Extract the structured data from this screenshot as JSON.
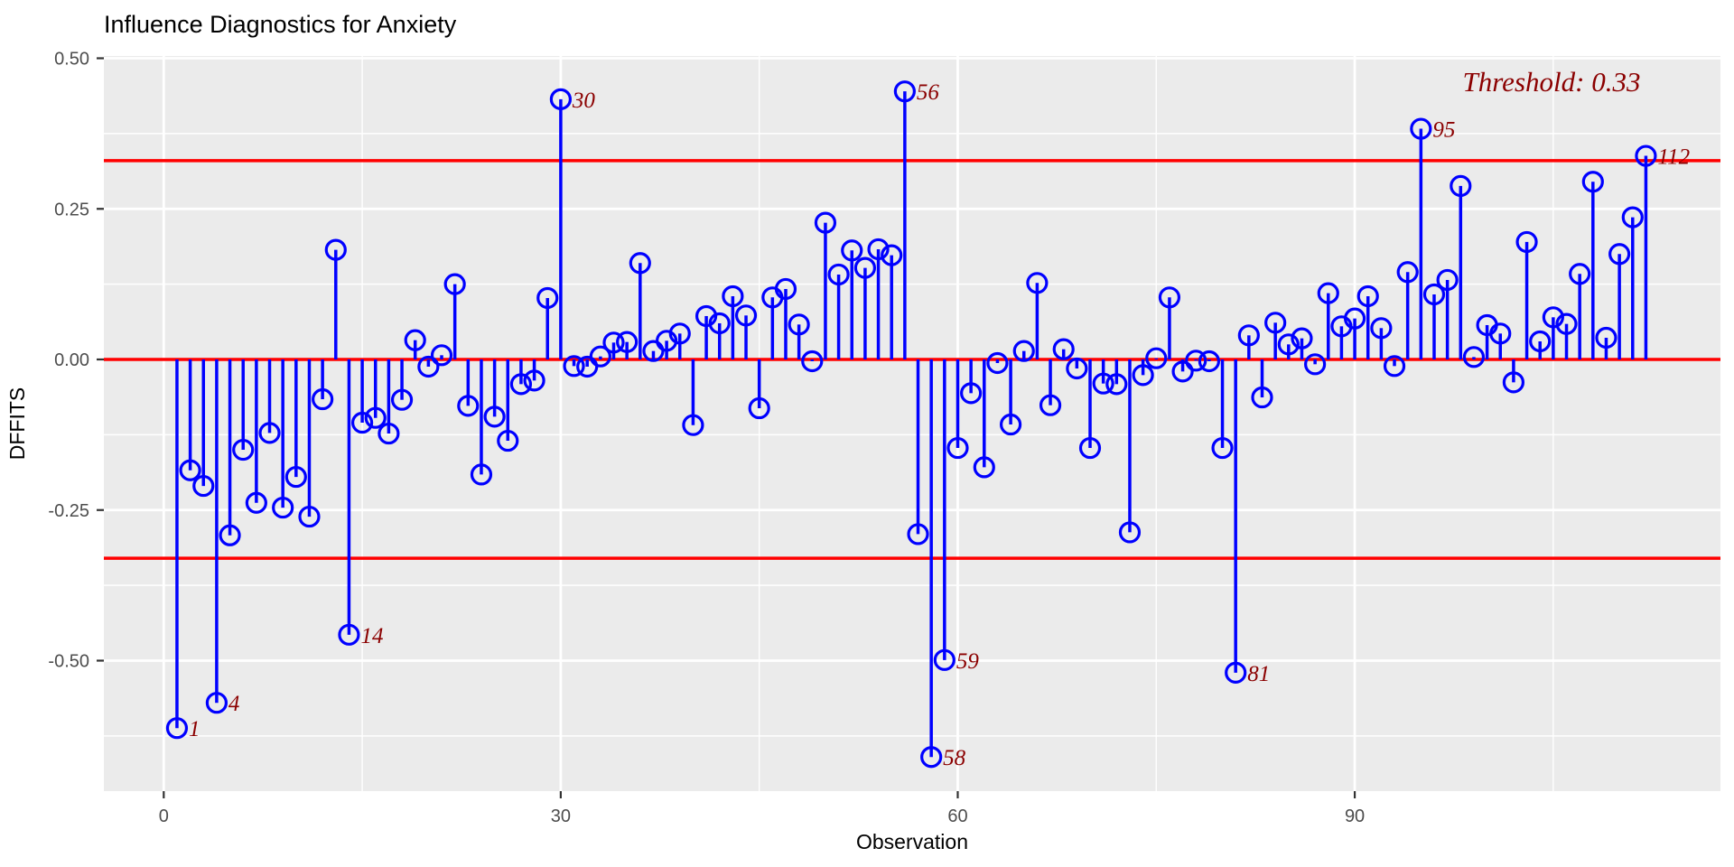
{
  "title": "Influence Diagnostics for Anxiety",
  "annotation": {
    "text": "Threshold: 0.33"
  },
  "axes": {
    "x_label": "Observation",
    "y_label": "DFFITS"
  },
  "chart_data": {
    "type": "stem",
    "title": "Influence Diagnostics for Anxiety",
    "xlabel": "Observation",
    "ylabel": "DFFITS",
    "threshold": 0.33,
    "zero_line": 0,
    "xlim": [
      -4.5,
      117.7
    ],
    "ylim": [
      -0.717,
      0.504
    ],
    "x_ticks": [
      0,
      30,
      60,
      90
    ],
    "x_minor_ticks": [
      15,
      45,
      75,
      105
    ],
    "y_ticks": [
      0.5,
      0.25,
      0,
      -0.25,
      -0.5
    ],
    "y_tick_labels": [
      "0.50",
      "0.25",
      "0.00",
      "-0.25",
      "-0.50"
    ],
    "y_minor_ticks": [
      0.375,
      0.125,
      -0.125,
      -0.375,
      -0.625
    ],
    "grid": true,
    "legend": false,
    "observations_start_at": 1,
    "values": [
      -0.612,
      -0.184,
      -0.21,
      -0.57,
      -0.292,
      -0.15,
      -0.238,
      -0.122,
      -0.246,
      -0.195,
      -0.261,
      -0.066,
      0.182,
      -0.457,
      -0.105,
      -0.097,
      -0.123,
      -0.067,
      0.032,
      -0.012,
      0.007,
      0.125,
      -0.077,
      -0.191,
      -0.095,
      -0.135,
      -0.041,
      -0.035,
      0.102,
      0.432,
      -0.011,
      -0.012,
      0.005,
      0.028,
      0.029,
      0.16,
      0.014,
      0.031,
      0.043,
      -0.109,
      0.072,
      0.06,
      0.105,
      0.073,
      -0.081,
      0.103,
      0.117,
      0.058,
      -0.003,
      0.227,
      0.141,
      0.181,
      0.152,
      0.183,
      0.173,
      0.445,
      -0.29,
      -0.66,
      -0.499,
      -0.147,
      -0.056,
      -0.179,
      -0.006,
      -0.108,
      0.014,
      0.127,
      -0.076,
      0.017,
      -0.015,
      -0.147,
      -0.04,
      -0.041,
      -0.287,
      -0.026,
      0.002,
      0.103,
      -0.02,
      -0.002,
      -0.003,
      -0.147,
      -0.52,
      0.04,
      -0.063,
      0.061,
      0.025,
      0.035,
      -0.008,
      0.11,
      0.055,
      0.068,
      0.105,
      0.052,
      -0.011,
      0.145,
      0.383,
      0.108,
      0.132,
      0.288,
      0.004,
      0.057,
      0.043,
      -0.038,
      0.195,
      0.03,
      0.07,
      0.059,
      0.142,
      0.295,
      0.036,
      0.175,
      0.236,
      0.338
    ],
    "labeled_points": [
      1,
      4,
      14,
      30,
      56,
      58,
      59,
      81,
      95,
      112
    ],
    "colors": {
      "stem": "#0000FF",
      "marker": "#0000FF",
      "reference_line": "#FF0000",
      "point_label": "#8B0000",
      "annotation": "#8B0000",
      "panel_background": "#EBEBEB",
      "gridline": "#FFFFFF",
      "axis_text": "#4D4D4D",
      "axis_tick": "#333333",
      "title_text": "#000000"
    }
  }
}
